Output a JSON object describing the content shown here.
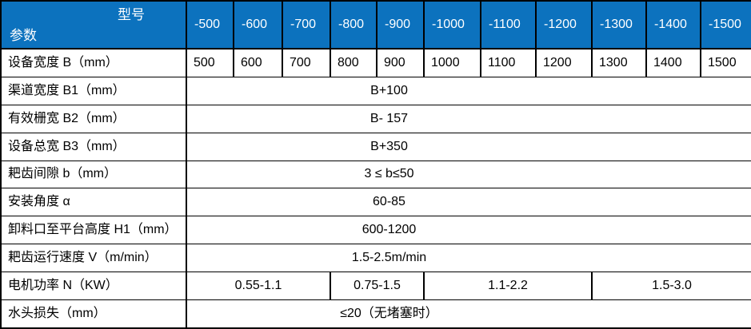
{
  "colors": {
    "header_bg": "#0C72BE",
    "header_text": "#FFFFFF",
    "border": "#000000",
    "cell_text": "#000000",
    "body_bg": "#FFFFFF"
  },
  "table": {
    "corner": {
      "model_label": "型号",
      "param_label": "参数"
    },
    "model_headers": [
      "-500",
      "-600",
      "-700",
      "-800",
      "-900",
      "-1000",
      "-1100",
      "-1200",
      "-1300",
      "-1400",
      "-1500"
    ],
    "rows": [
      {
        "label": "设备宽度 B（mm）",
        "type": "values",
        "values": [
          "500",
          "600",
          "700",
          "800",
          "900",
          "1000",
          "1100",
          "1200",
          "1300",
          "1400",
          "1500"
        ]
      },
      {
        "label": "渠道宽度 B1（mm）",
        "type": "merged",
        "value": "B+100"
      },
      {
        "label": "有效栅宽 B2（mm）",
        "type": "merged",
        "value": "B- 157"
      },
      {
        "label": "设备总宽 B3（mm）",
        "type": "merged",
        "value": "B+350"
      },
      {
        "label": "耙齿间隙 b（mm）",
        "type": "merged",
        "value": "3 ≤ b≤50"
      },
      {
        "label": "安装角度  α",
        "type": "merged",
        "value": "60-85"
      },
      {
        "label": "卸料口至平台高度 H1（mm）",
        "type": "merged",
        "value": "600-1200"
      },
      {
        "label": "耙齿运行速度 V（m/min）",
        "type": "merged",
        "value": "1.5-2.5m/min"
      },
      {
        "label": "电机功率 N（KW）",
        "type": "groups",
        "groups": [
          {
            "value": "0.55-1.1",
            "span": 3
          },
          {
            "value": "0.75-1.5",
            "span": 2
          },
          {
            "value": "1.1-2.2",
            "span": 3
          },
          {
            "value": "1.5-3.0",
            "span": 3
          }
        ]
      },
      {
        "label": "水头损失（mm）",
        "type": "merged",
        "value": "≤20（无堵塞时）"
      }
    ]
  }
}
